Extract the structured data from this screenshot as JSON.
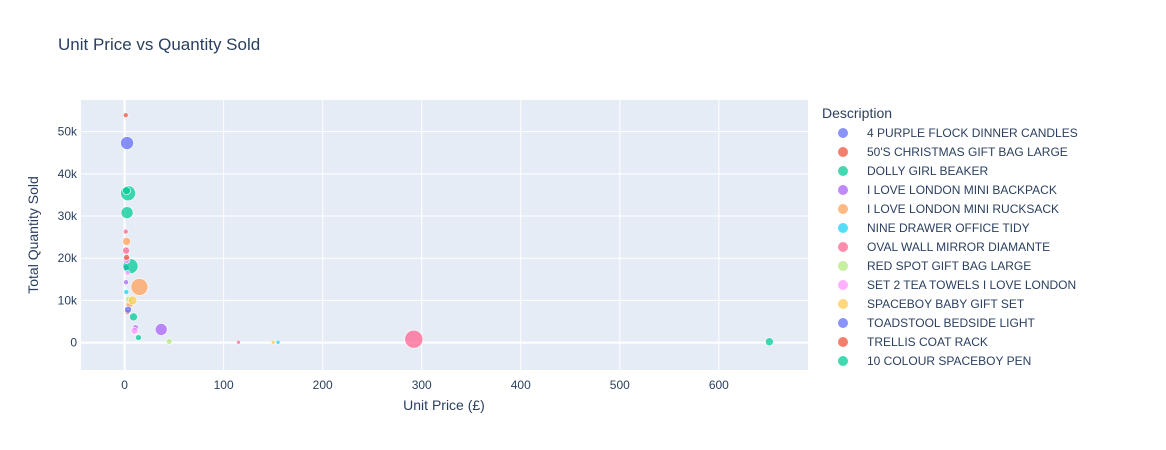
{
  "chart_data": {
    "type": "scatter",
    "title": "Unit Price vs Quantity Sold",
    "xlabel": "Unit Price (£)",
    "ylabel": "Total Quantity Sold",
    "xlim": [
      -44,
      690
    ],
    "ylim": [
      -6500,
      57500
    ],
    "xticks": [
      0,
      100,
      200,
      300,
      400,
      500,
      600,
      700
    ],
    "yticks": [
      0,
      10000,
      20000,
      30000,
      40000,
      50000
    ],
    "ytick_labels": [
      "0",
      "10k",
      "20k",
      "30k",
      "40k",
      "50k"
    ],
    "grid": true,
    "legend_title": "Description",
    "legend_position": "right",
    "series": [
      {
        "name": "4 PURPLE FLOCK DINNER CANDLES",
        "color": "#636efa",
        "points": [
          [
            2.5,
            47300,
            11
          ],
          [
            1.5,
            17800,
            4
          ]
        ]
      },
      {
        "name": "50'S CHRISTMAS GIFT BAG LARGE",
        "color": "#EF553B",
        "points": [
          [
            1.2,
            53900,
            3
          ],
          [
            3.0,
            7200,
            3
          ]
        ]
      },
      {
        "name": "DOLLY GIRL BEAKER",
        "color": "#00cc96",
        "points": [
          [
            3.5,
            35400,
            13
          ],
          [
            2.5,
            30800,
            10
          ],
          [
            2.0,
            36000,
            6
          ],
          [
            6.0,
            18100,
            13
          ],
          [
            9.0,
            6100,
            6
          ]
        ]
      },
      {
        "name": "I LOVE LONDON MINI BACKPACK",
        "color": "#ab63fa",
        "points": [
          [
            37.0,
            3100,
            10
          ],
          [
            1.5,
            14300,
            3
          ],
          [
            11.0,
            3500,
            4
          ]
        ]
      },
      {
        "name": "I LOVE LONDON MINI RUCKSACK",
        "color": "#FFA15A",
        "points": [
          [
            15.0,
            13200,
            15
          ],
          [
            2.0,
            24000,
            6
          ],
          [
            5.0,
            9000,
            5
          ]
        ]
      },
      {
        "name": "NINE DRAWER OFFICE TIDY",
        "color": "#19d3f3",
        "points": [
          [
            155.0,
            80,
            2
          ],
          [
            1.8,
            12000,
            3
          ]
        ]
      },
      {
        "name": "OVAL WALL MIRROR DIAMANTE",
        "color": "#FF6692",
        "points": [
          [
            292.0,
            800,
            16
          ],
          [
            1.5,
            21800,
            5
          ],
          [
            1.2,
            26300,
            3
          ],
          [
            115.0,
            80,
            2
          ]
        ]
      },
      {
        "name": "RED SPOT GIFT BAG LARGE",
        "color": "#B6E880",
        "points": [
          [
            45.0,
            300,
            4
          ],
          [
            4.5,
            10200,
            5
          ]
        ]
      },
      {
        "name": "SET 2 TEA TOWELS I LOVE LONDON",
        "color": "#FF97FF",
        "points": [
          [
            2.0,
            19600,
            5
          ],
          [
            3.0,
            16500,
            3
          ],
          [
            10.0,
            2800,
            5
          ]
        ]
      },
      {
        "name": "SPACEBOY BABY GIFT SET",
        "color": "#FECB52",
        "points": [
          [
            8.0,
            10000,
            7
          ],
          [
            150.0,
            80,
            2
          ]
        ]
      },
      {
        "name": "TOADSTOOL BEDSIDE LIGHT",
        "color": "#636efa",
        "points": [
          [
            3.5,
            7800,
            5
          ]
        ]
      },
      {
        "name": "TRELLIS COAT RACK",
        "color": "#EF553B",
        "points": [
          [
            2.0,
            20200,
            4
          ]
        ]
      },
      {
        "name": "10 COLOUR SPACEBOY PEN",
        "color": "#00cc96",
        "points": [
          [
            651.0,
            200,
            6
          ],
          [
            14.0,
            1200,
            4
          ]
        ]
      }
    ]
  }
}
